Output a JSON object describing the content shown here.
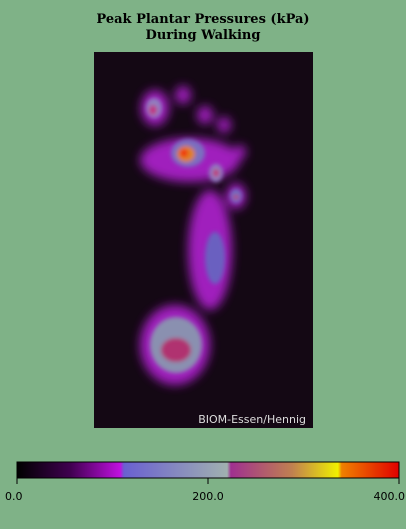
{
  "chart_data": {
    "type": "heatmap",
    "title": [
      "Peak Plantar Pressures (kPa)",
      "During Walking"
    ],
    "credit": "BIOM-Essen/Hennig",
    "colorbar": {
      "lim": [
        0,
        400
      ],
      "ticks": [
        {
          "value": 0,
          "label": "0.0"
        },
        {
          "value": 200,
          "label": "200.0"
        },
        {
          "value": 400,
          "label": "400.0"
        }
      ]
    }
  }
}
